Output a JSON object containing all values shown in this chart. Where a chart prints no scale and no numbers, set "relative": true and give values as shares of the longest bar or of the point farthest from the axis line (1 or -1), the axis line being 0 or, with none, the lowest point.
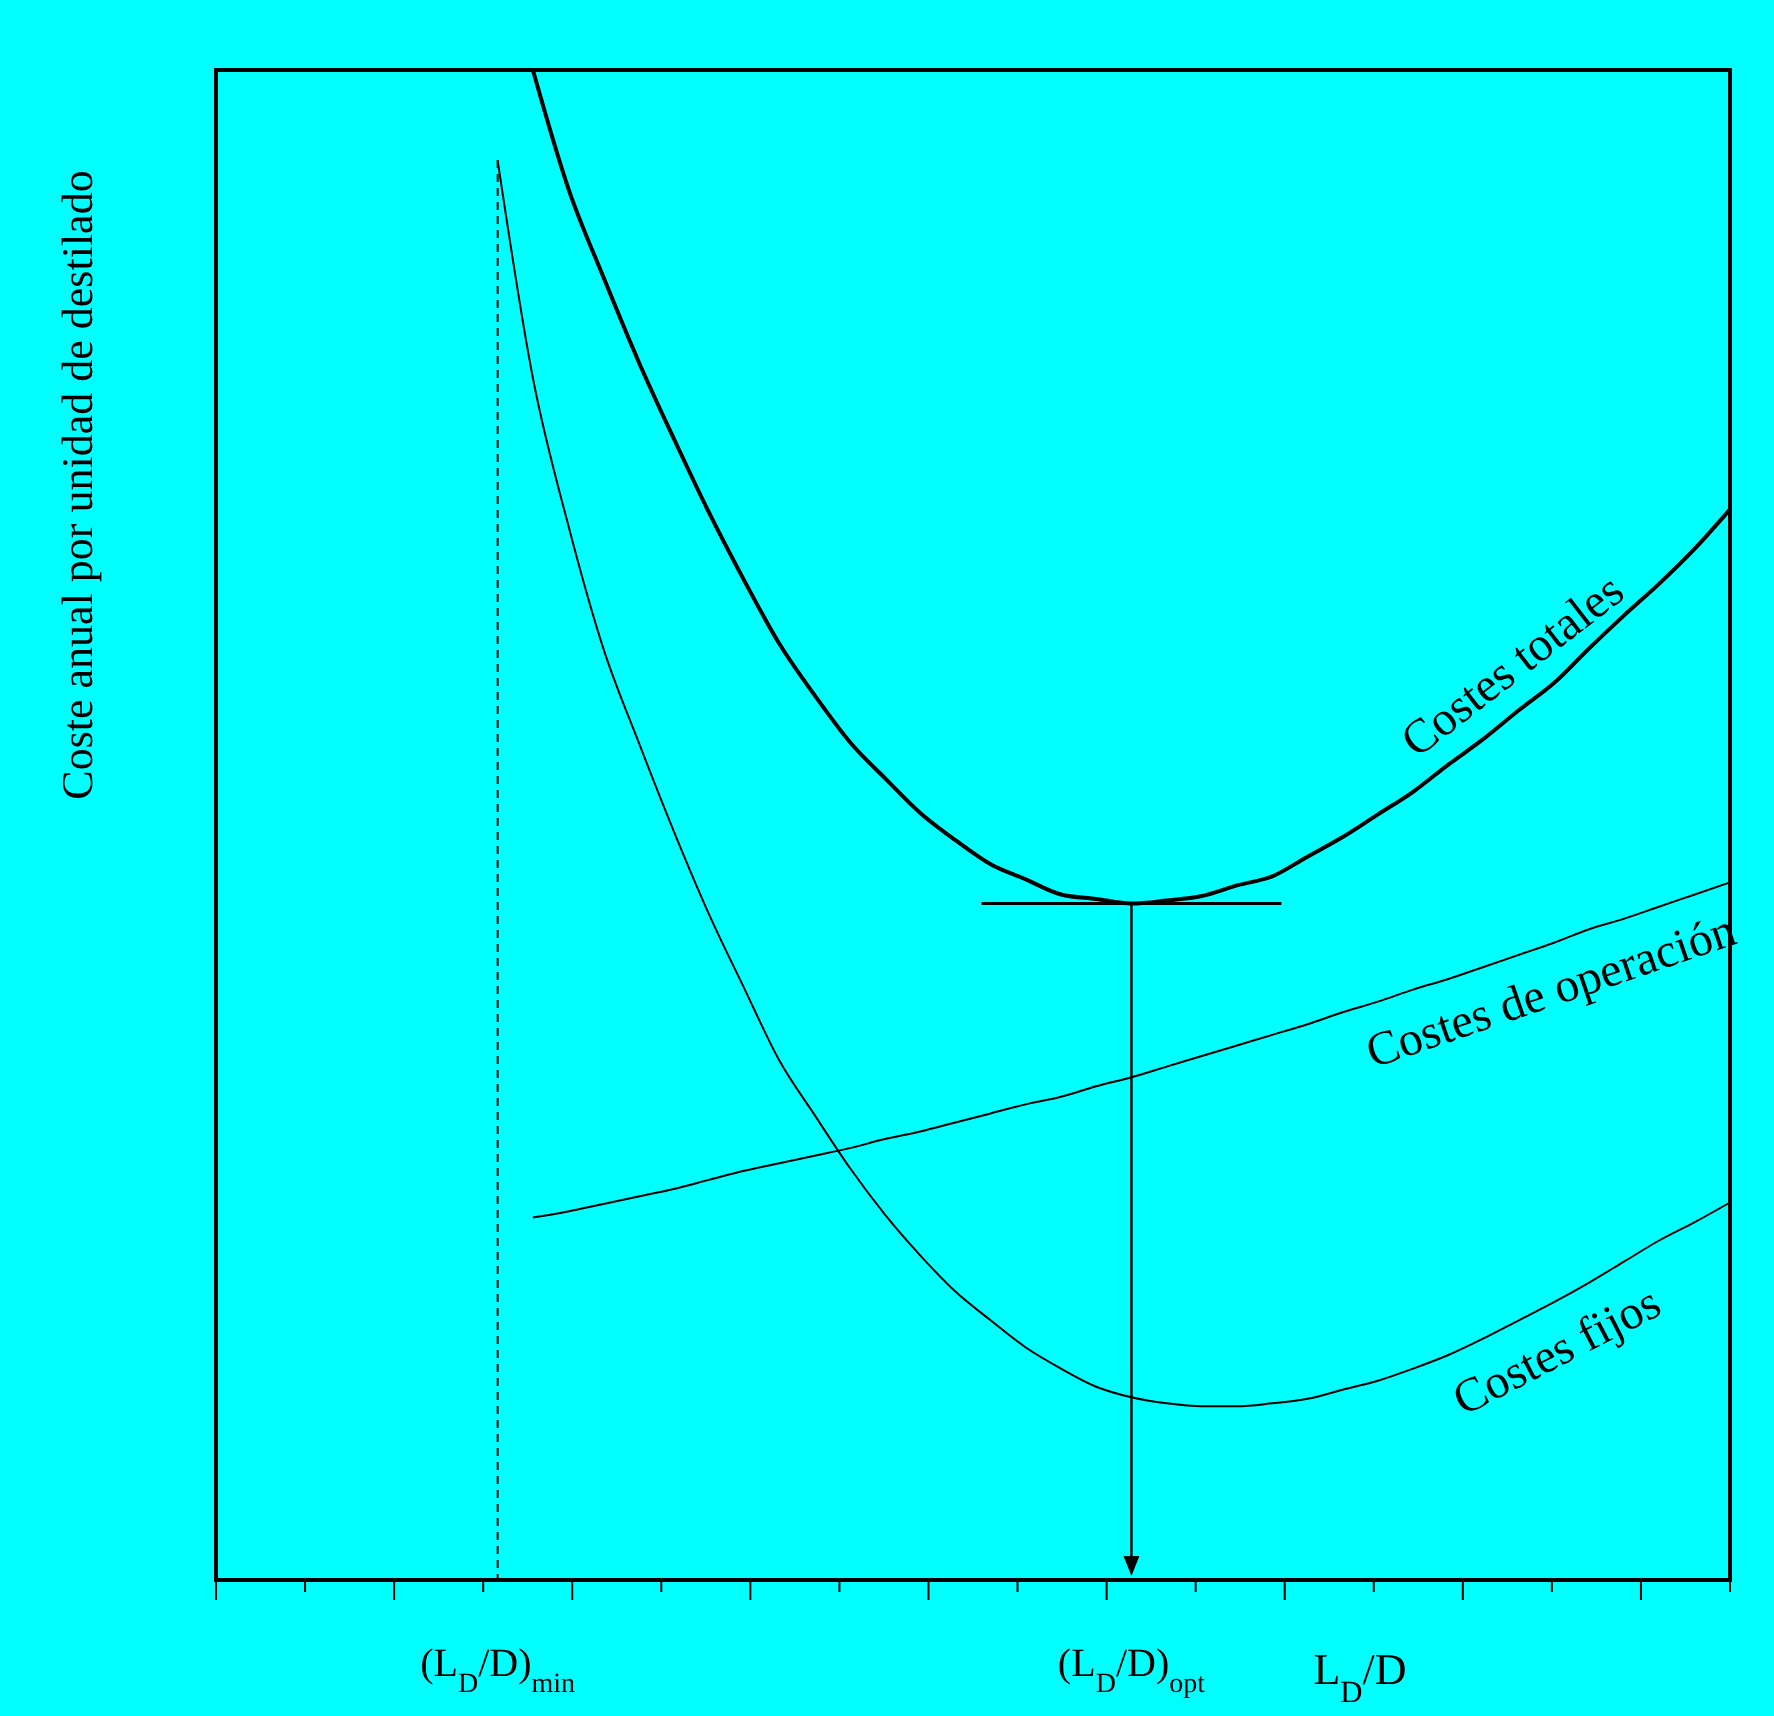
{
  "chart_data": {
    "type": "line",
    "relative": true,
    "ylabel": "Coste anual por unidad de destilado",
    "xlabel": "L$_{D}$/D",
    "categories": [
      null,
      null,
      null,
      null,
      null,
      null,
      null,
      null,
      "(L$_{D}$/D)$_{min}$",
      null,
      null,
      null,
      null,
      null,
      null,
      null,
      null,
      null,
      null,
      null,
      null,
      null,
      null,
      null,
      null,
      null,
      "(L$_{D}$/D)$_{opt}$",
      null,
      null,
      null,
      null,
      null,
      null,
      null,
      null,
      null,
      null,
      null,
      null,
      null,
      null,
      null,
      null,
      null
    ],
    "ref_lines": [
      {
        "axis": "x",
        "value": "(L$_{D}$/D)$_{min}$",
        "line_style": "dashed",
        "color": "#000000"
      }
    ],
    "series": [
      {
        "name": "Costes totales",
        "color": "#000000",
        "values": [
          null,
          null,
          null,
          null,
          null,
          null,
          null,
          null,
          null,
          1.0,
          0.922,
          0.863,
          0.807,
          0.756,
          0.707,
          0.662,
          0.62,
          0.586,
          0.555,
          0.531,
          0.508,
          0.49,
          0.474,
          0.464,
          0.454,
          0.451,
          0.448,
          0.45,
          0.453,
          0.46,
          0.466,
          0.479,
          0.492,
          0.507,
          0.522,
          0.54,
          0.557,
          0.576,
          0.594,
          0.617,
          0.639,
          0.66,
          0.683,
          0.709
        ]
      },
      {
        "name": "Costes de operación",
        "color": "#000000",
        "values": [
          null,
          null,
          null,
          null,
          null,
          null,
          null,
          null,
          null,
          0.24,
          0.244,
          0.249,
          0.254,
          0.259,
          0.265,
          0.271,
          0.276,
          0.281,
          0.286,
          0.292,
          0.297,
          0.303,
          0.309,
          0.315,
          0.32,
          0.327,
          0.333,
          0.34,
          0.347,
          0.354,
          0.361,
          0.368,
          0.376,
          0.383,
          0.391,
          0.398,
          0.406,
          0.414,
          0.422,
          0.431,
          0.438,
          0.446,
          0.454,
          0.462
        ]
      },
      {
        "name": "Costes fijos",
        "color": "#000000",
        "values": [
          null,
          null,
          null,
          null,
          null,
          null,
          null,
          null,
          0.94,
          0.796,
          0.699,
          0.617,
          0.555,
          0.496,
          0.441,
          0.392,
          0.344,
          0.308,
          0.273,
          0.242,
          0.215,
          0.191,
          0.172,
          0.154,
          0.14,
          0.128,
          0.121,
          0.117,
          0.115,
          0.115,
          0.117,
          0.12,
          0.126,
          0.132,
          0.14,
          0.149,
          0.16,
          0.172,
          0.184,
          0.197,
          0.211,
          0.225,
          0.237,
          0.25
        ]
      }
    ],
    "grid": false,
    "marker": "none",
    "line_style": "solid"
  }
}
